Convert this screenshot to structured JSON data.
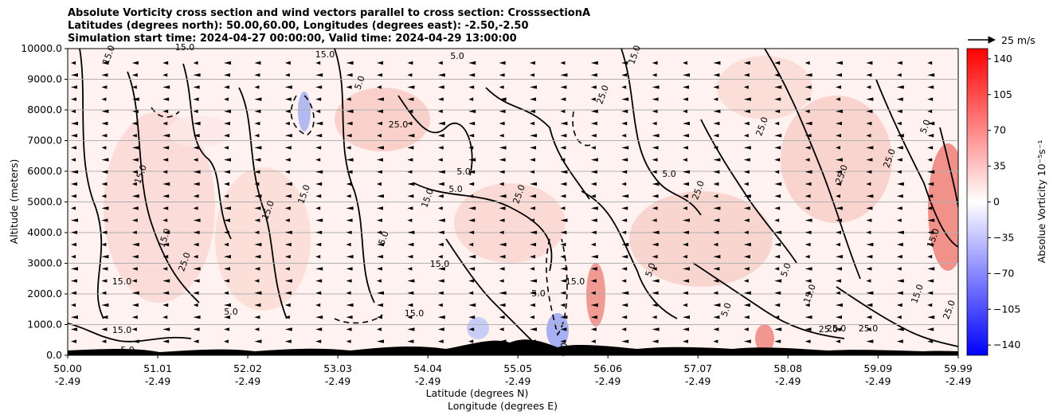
{
  "chart_data": {
    "type": "heatmap",
    "title_lines": [
      "Absolute Vorticity cross section and wind vectors parallel to cross section: CrosssectionA",
      "Latitudes (degrees north): 50.00,60.00, Longitudes (degrees east): -2.50,-2.50",
      "Simulation start time: 2024-04-27 00:00:00, Valid time: 2024-04-29 13:00:00"
    ],
    "xlabel_lat": "Latitude (degrees N)",
    "xlabel_lon": "Longitude (degrees E)",
    "ylabel": "Altitude (meters)",
    "xlim": [
      50.0,
      59.99
    ],
    "ylim": [
      0,
      10000
    ],
    "x_ticks": [
      {
        "lat": "50.00",
        "lon": "-2.49",
        "value": 50.0
      },
      {
        "lat": "51.01",
        "lon": "-2.49",
        "value": 51.01
      },
      {
        "lat": "52.02",
        "lon": "-2.49",
        "value": 52.02
      },
      {
        "lat": "53.03",
        "lon": "-2.49",
        "value": 53.03
      },
      {
        "lat": "54.04",
        "lon": "-2.49",
        "value": 54.04
      },
      {
        "lat": "55.05",
        "lon": "-2.49",
        "value": 55.05
      },
      {
        "lat": "56.06",
        "lon": "-2.49",
        "value": 56.06
      },
      {
        "lat": "57.07",
        "lon": "-2.49",
        "value": 57.07
      },
      {
        "lat": "58.08",
        "lon": "-2.49",
        "value": 58.08
      },
      {
        "lat": "59.09",
        "lon": "-2.49",
        "value": 59.09
      },
      {
        "lat": "59.99",
        "lon": "-2.49",
        "value": 59.99
      }
    ],
    "y_ticks": [
      "0.0",
      "1000.0",
      "2000.0",
      "3000.0",
      "4000.0",
      "5000.0",
      "6000.0",
      "7000.0",
      "8000.0",
      "9000.0",
      "10000.0"
    ],
    "y_tick_values": [
      0,
      1000,
      2000,
      3000,
      4000,
      5000,
      6000,
      7000,
      8000,
      9000,
      10000
    ],
    "grid": "horizontal",
    "colorbar": {
      "label": "Absolue Vorticity 10⁻⁵s⁻¹",
      "ticks": [
        "140",
        "105",
        "70",
        "35",
        "0",
        "−35",
        "−70",
        "−105",
        "−140"
      ],
      "tick_values": [
        140,
        105,
        70,
        35,
        0,
        -35,
        -70,
        -105,
        -140
      ],
      "range": [
        -150,
        150
      ],
      "colors": {
        "min": "#0000ff",
        "mid": "#ffffff",
        "max": "#ff0000"
      }
    },
    "quiver_key": {
      "label": "25 m/s"
    },
    "contour_labels": [
      "5.0",
      "15.0",
      "25.0"
    ],
    "wind_direction": "southward (toward lower latitude)"
  }
}
